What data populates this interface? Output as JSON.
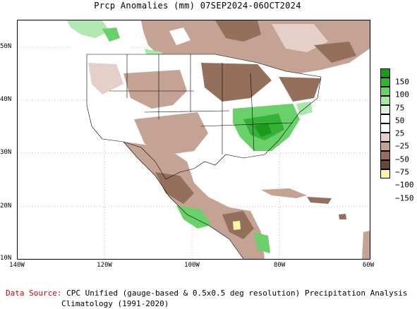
{
  "title": "Prcp Anomalies (mm) 07SEP2024-06OCT2024",
  "map": {
    "x_ticks": [
      "140W",
      "120W",
      "100W",
      "80W",
      "60W"
    ],
    "y_ticks": [
      "50N",
      "40N",
      "30N",
      "20N",
      "10N"
    ],
    "land_color": "#ffffff",
    "water_color": "#ffffff"
  },
  "legend": {
    "labels": [
      "150",
      "100",
      "75",
      "50",
      "25",
      "−25",
      "−50",
      "−75",
      "−100",
      "−150"
    ],
    "colors": [
      "#1c9a1c",
      "#36b336",
      "#6ad06a",
      "#a6e8a6",
      "#d8f4d8",
      "#ffffff",
      "#e6cfc8",
      "#c4a294",
      "#94705c",
      "#6b4633",
      "#fff5a8"
    ]
  },
  "footer": {
    "source_label": "Data Source:",
    "source_text": "CPC Unified (gauge-based & 0.5x0.5 deg resolution) Precipitation Analysis",
    "climatology": "Climatology (1991-2020)"
  }
}
